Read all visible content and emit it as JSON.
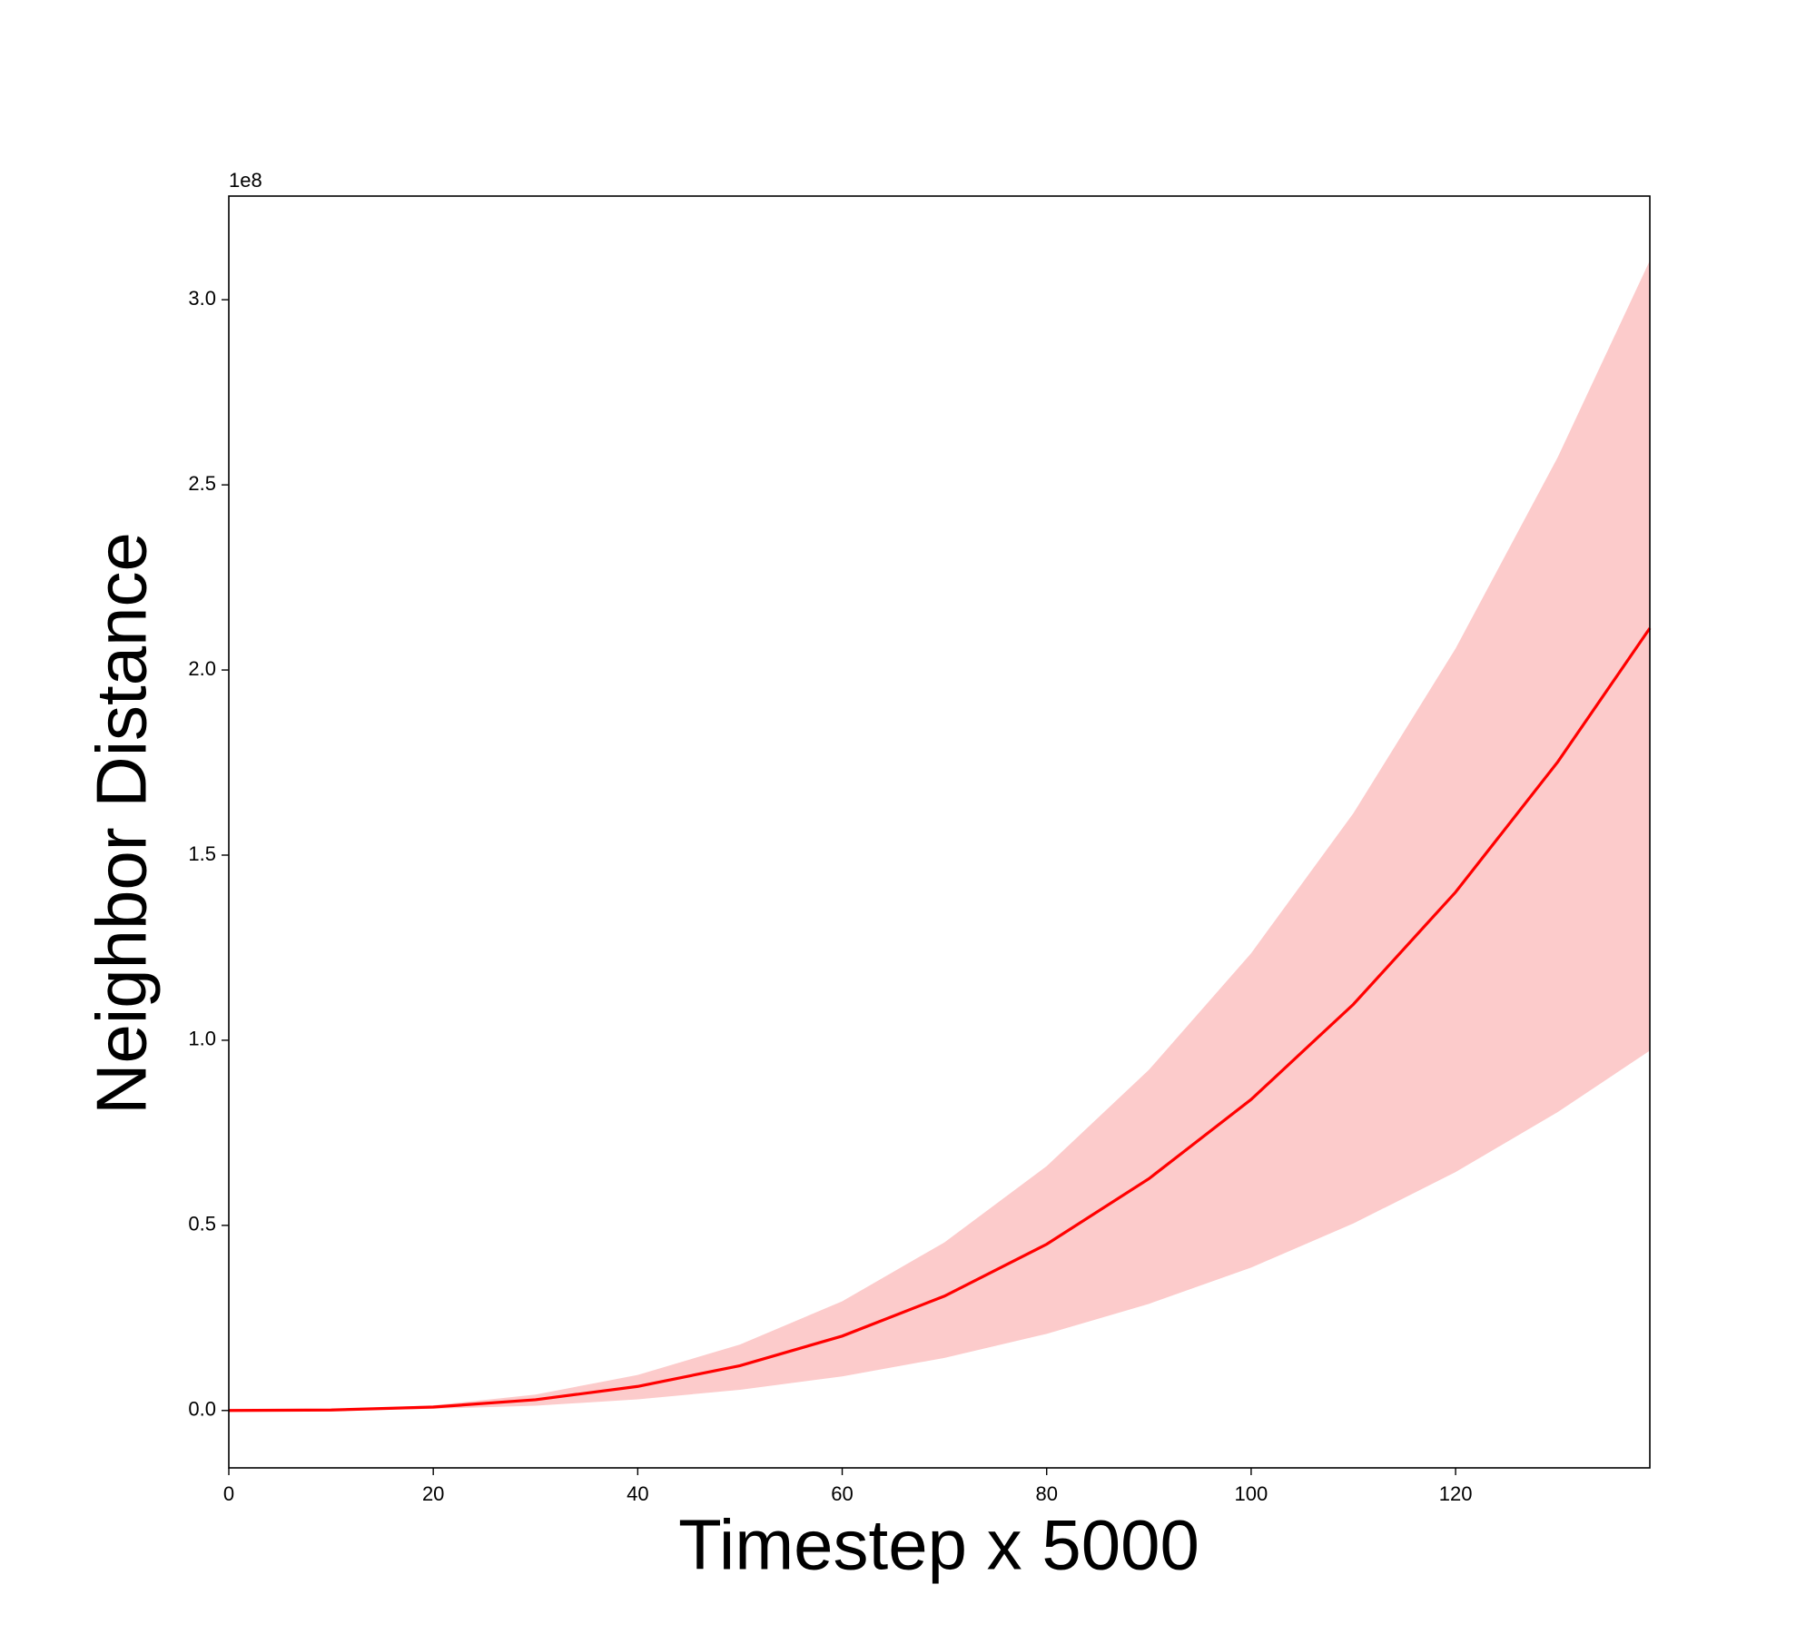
{
  "chart_data": {
    "type": "line-band",
    "xlabel": "Timestep x 5000",
    "ylabel": "Neighbor Distance",
    "y_offset_label": "1e8",
    "x": [
      0,
      10,
      20,
      30,
      40,
      50,
      60,
      70,
      80,
      90,
      100,
      110,
      120,
      130,
      139
    ],
    "values": [
      0,
      0.0013,
      0.0093,
      0.029,
      0.065,
      0.121,
      0.201,
      0.309,
      0.449,
      0.626,
      0.84,
      1.097,
      1.4,
      1.752,
      2.113
    ],
    "upper": [
      0,
      0.002,
      0.014,
      0.043,
      0.096,
      0.178,
      0.295,
      0.454,
      0.66,
      0.92,
      1.235,
      1.613,
      2.058,
      2.575,
      3.106
    ],
    "lower": [
      0,
      0.0006,
      0.0043,
      0.013,
      0.03,
      0.056,
      0.092,
      0.142,
      0.207,
      0.288,
      0.386,
      0.505,
      0.644,
      0.806,
      0.972
    ],
    "color": "#ff0000",
    "band_color": "#fccbcb",
    "xlim": [
      0,
      139
    ],
    "ylim": [
      -0.155,
      3.28
    ],
    "xticks": [
      0,
      20,
      40,
      60,
      80,
      100,
      120
    ],
    "yticks": [
      {
        "value": 0,
        "label": "0.0"
      },
      0.5,
      {
        "value": 1,
        "label": "1.0"
      },
      1.5,
      {
        "value": 2,
        "label": "2.0"
      },
      2.5,
      {
        "value": 3,
        "label": "3.0"
      }
    ]
  }
}
